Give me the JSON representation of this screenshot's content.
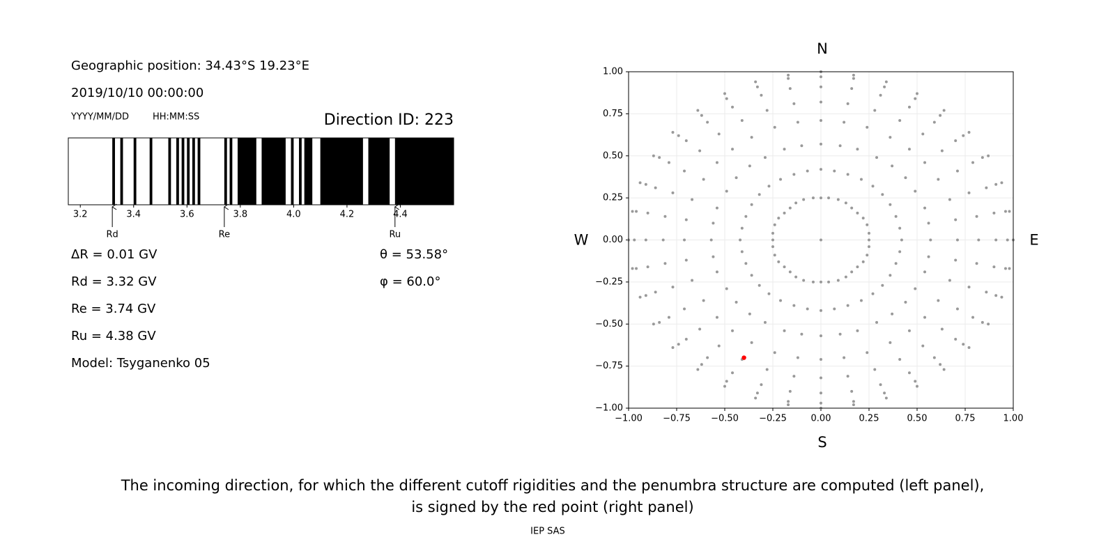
{
  "geographic_position": "Geographic position: 34.43°S 19.23°E",
  "datetime": "2019/10/10 00:00:00",
  "date_format": "YYYY/MM/DD",
  "time_format": "HH:MM:SS",
  "direction_id": "Direction ID: 223",
  "parameters": [
    "ΔR = 0.01 GV",
    "Rd = 3.32 GV",
    "Re = 3.74 GV",
    "Ru = 4.38 GV",
    "Model: Tsyganenko 05"
  ],
  "angles": [
    "θ = 53.58°",
    "φ = 60.0°"
  ],
  "chart_data": [
    {
      "type": "broken_barh",
      "color": "#000000",
      "intervals": [
        [
          3.32,
          3.33
        ],
        [
          3.35,
          3.36
        ],
        [
          3.4,
          3.41
        ],
        [
          3.46,
          3.47
        ],
        [
          3.53,
          3.54
        ],
        [
          3.56,
          3.57
        ],
        [
          3.58,
          3.59
        ],
        [
          3.6,
          3.61
        ],
        [
          3.62,
          3.63
        ],
        [
          3.64,
          3.65
        ],
        [
          3.74,
          3.75
        ],
        [
          3.76,
          3.77
        ],
        [
          3.79,
          3.86
        ],
        [
          3.88,
          3.97
        ],
        [
          3.99,
          4.0
        ],
        [
          4.02,
          4.03
        ],
        [
          4.04,
          4.07
        ],
        [
          4.1,
          4.26
        ],
        [
          4.28,
          4.36
        ],
        [
          4.38,
          4.6
        ]
      ],
      "xlim": [
        3.155,
        4.6
      ],
      "xticks": [
        3.2,
        3.4,
        3.6,
        3.8,
        {
          "value": 4,
          "label": "4.0"
        },
        4.2,
        4.4
      ],
      "markers": [
        {
          "label": "Rd",
          "value": 3.32
        },
        {
          "label": "Re",
          "value": 3.74
        },
        {
          "label": "Ru",
          "value": 4.38
        }
      ]
    },
    {
      "type": "scatter",
      "color": "#999999",
      "x": [
        0.25,
        0.42,
        0.57,
        0.71,
        0.82,
        0.91,
        0.97,
        1,
        0.25,
        0.41,
        0.56,
        0.7,
        0.81,
        0.9,
        0.96,
        0.98,
        0.24,
        0.39,
        0.54,
        0.67,
        0.77,
        0.86,
        0.91,
        0.94,
        0.22,
        0.36,
        0.49,
        0.61,
        0.71,
        0.79,
        0.84,
        0.87,
        0.19,
        0.32,
        0.44,
        0.54,
        0.63,
        0.7,
        0.74,
        0.77,
        0.16,
        0.27,
        0.37,
        0.46,
        0.53,
        0.59,
        0.62,
        0.64,
        0.13,
        0.21,
        0.29,
        0.36,
        0.41,
        0.46,
        0.49,
        0.5,
        0.09,
        0.14,
        0.19,
        0.24,
        0.28,
        0.31,
        0.33,
        0.34,
        0.04,
        0.07,
        0.1,
        0.12,
        0.14,
        0.16,
        0.17,
        0.17,
        0,
        0,
        0,
        0,
        0,
        0,
        0,
        0,
        -0.04,
        -0.07,
        -0.1,
        -0.12,
        -0.14,
        -0.16,
        -0.17,
        -0.17,
        -0.09,
        -0.14,
        -0.19,
        -0.24,
        -0.28,
        -0.31,
        -0.33,
        -0.34,
        -0.13,
        -0.21,
        -0.29,
        -0.36,
        -0.41,
        -0.46,
        -0.49,
        -0.5,
        -0.16,
        -0.27,
        -0.37,
        -0.46,
        -0.53,
        -0.59,
        -0.62,
        -0.64,
        -0.19,
        -0.32,
        -0.44,
        -0.54,
        -0.63,
        -0.7,
        -0.74,
        -0.77,
        -0.22,
        -0.36,
        -0.49,
        -0.61,
        -0.71,
        -0.79,
        -0.84,
        -0.87,
        -0.24,
        -0.39,
        -0.54,
        -0.67,
        -0.77,
        -0.86,
        -0.91,
        -0.94,
        -0.25,
        -0.41,
        -0.56,
        -0.7,
        -0.81,
        -0.9,
        -0.96,
        -0.98,
        -0.25,
        -0.42,
        -0.57,
        -0.71,
        -0.82,
        -0.91,
        -0.97,
        -1,
        -0.25,
        -0.41,
        -0.56,
        -0.7,
        -0.81,
        -0.9,
        -0.96,
        -0.98,
        -0.24,
        -0.39,
        -0.54,
        -0.67,
        -0.77,
        -0.86,
        -0.91,
        -0.94,
        -0.22,
        -0.36,
        -0.49,
        -0.61,
        -0.71,
        -0.79,
        -0.84,
        -0.87,
        -0.19,
        -0.32,
        -0.44,
        -0.54,
        -0.63,
        -0.7,
        -0.74,
        -0.77,
        -0.16,
        -0.27,
        -0.37,
        -0.46,
        -0.53,
        -0.59,
        -0.62,
        -0.64,
        -0.13,
        -0.21,
        -0.29,
        -0.36,
        -0.41,
        -0.46,
        -0.49,
        -0.5,
        -0.09,
        -0.14,
        -0.19,
        -0.24,
        -0.28,
        -0.31,
        -0.33,
        -0.34,
        -0.04,
        -0.07,
        -0.1,
        -0.12,
        -0.14,
        -0.16,
        -0.17,
        -0.17,
        0,
        0,
        0,
        0,
        0,
        0,
        0,
        0,
        0.04,
        0.07,
        0.1,
        0.12,
        0.14,
        0.16,
        0.17,
        0.17,
        0.09,
        0.14,
        0.19,
        0.24,
        0.28,
        0.31,
        0.33,
        0.34,
        0.13,
        0.21,
        0.29,
        0.36,
        0.41,
        0.46,
        0.49,
        0.5,
        0.16,
        0.27,
        0.37,
        0.46,
        0.53,
        0.59,
        0.62,
        0.64,
        0.19,
        0.32,
        0.44,
        0.54,
        0.63,
        0.7,
        0.74,
        0.77,
        0.22,
        0.36,
        0.49,
        0.61,
        0.71,
        0.79,
        0.84,
        0.87,
        0.24,
        0.39,
        0.54,
        0.67,
        0.77,
        0.86,
        0.91,
        0.94,
        0.25,
        0.41,
        0.56,
        0.7,
        0.81,
        0.9,
        0.96,
        0.98,
        0
      ],
      "values": [
        0,
        0,
        0,
        0,
        0,
        0,
        0,
        0,
        0.04,
        0.07,
        0.1,
        0.12,
        0.14,
        0.16,
        0.17,
        0.17,
        0.09,
        0.14,
        0.19,
        0.24,
        0.28,
        0.31,
        0.33,
        0.34,
        0.13,
        0.21,
        0.29,
        0.36,
        0.41,
        0.46,
        0.49,
        0.5,
        0.16,
        0.27,
        0.37,
        0.46,
        0.53,
        0.59,
        0.62,
        0.64,
        0.19,
        0.32,
        0.44,
        0.54,
        0.63,
        0.7,
        0.74,
        0.77,
        0.22,
        0.36,
        0.49,
        0.61,
        0.71,
        0.79,
        0.84,
        0.87,
        0.24,
        0.39,
        0.54,
        0.67,
        0.77,
        0.86,
        0.91,
        0.94,
        0.25,
        0.41,
        0.56,
        0.7,
        0.81,
        0.9,
        0.96,
        0.98,
        0.25,
        0.42,
        0.57,
        0.71,
        0.82,
        0.91,
        0.97,
        1,
        0.25,
        0.41,
        0.56,
        0.7,
        0.81,
        0.9,
        0.96,
        0.98,
        0.24,
        0.39,
        0.54,
        0.67,
        0.77,
        0.86,
        0.91,
        0.94,
        0.22,
        0.36,
        0.49,
        0.61,
        0.71,
        0.79,
        0.84,
        0.87,
        0.19,
        0.32,
        0.44,
        0.54,
        0.63,
        0.7,
        0.74,
        0.77,
        0.16,
        0.27,
        0.37,
        0.46,
        0.53,
        0.59,
        0.62,
        0.64,
        0.13,
        0.21,
        0.29,
        0.36,
        0.41,
        0.46,
        0.49,
        0.5,
        0.09,
        0.14,
        0.19,
        0.24,
        0.28,
        0.31,
        0.33,
        0.34,
        0.04,
        0.07,
        0.1,
        0.12,
        0.14,
        0.16,
        0.17,
        0.17,
        0,
        0,
        0,
        0,
        0,
        0,
        0,
        0,
        -0.04,
        -0.07,
        -0.1,
        -0.12,
        -0.14,
        -0.16,
        -0.17,
        -0.17,
        -0.09,
        -0.14,
        -0.19,
        -0.24,
        -0.28,
        -0.31,
        -0.33,
        -0.34,
        -0.13,
        -0.21,
        -0.29,
        -0.36,
        -0.41,
        -0.46,
        -0.49,
        -0.5,
        -0.16,
        -0.27,
        -0.37,
        -0.46,
        -0.53,
        -0.59,
        -0.62,
        -0.64,
        -0.19,
        -0.32,
        -0.44,
        -0.54,
        -0.63,
        -0.7,
        -0.74,
        -0.77,
        -0.22,
        -0.36,
        -0.49,
        -0.61,
        -0.71,
        -0.79,
        -0.84,
        -0.87,
        -0.24,
        -0.39,
        -0.54,
        -0.67,
        -0.77,
        -0.86,
        -0.91,
        -0.94,
        -0.25,
        -0.41,
        -0.56,
        -0.7,
        -0.81,
        -0.9,
        -0.96,
        -0.98,
        -0.25,
        -0.42,
        -0.57,
        -0.71,
        -0.82,
        -0.91,
        -0.97,
        -1,
        -0.25,
        -0.41,
        -0.56,
        -0.7,
        -0.81,
        -0.9,
        -0.96,
        -0.98,
        -0.24,
        -0.39,
        -0.54,
        -0.67,
        -0.77,
        -0.86,
        -0.91,
        -0.94,
        -0.22,
        -0.36,
        -0.49,
        -0.61,
        -0.71,
        -0.79,
        -0.84,
        -0.87,
        -0.19,
        -0.32,
        -0.44,
        -0.54,
        -0.63,
        -0.7,
        -0.74,
        -0.77,
        -0.16,
        -0.27,
        -0.37,
        -0.46,
        -0.53,
        -0.59,
        -0.62,
        -0.64,
        -0.13,
        -0.21,
        -0.29,
        -0.36,
        -0.41,
        -0.46,
        -0.49,
        -0.5,
        -0.09,
        -0.14,
        -0.19,
        -0.24,
        -0.28,
        -0.31,
        -0.33,
        -0.34,
        -0.04,
        -0.07,
        -0.1,
        -0.12,
        -0.14,
        -0.16,
        -0.17,
        -0.17,
        0
      ],
      "highlight": {
        "x": -0.4,
        "y": -0.7,
        "color": "#ff0000"
      },
      "xlim": [
        -1,
        1
      ],
      "ylim": [
        -1,
        1
      ],
      "xticks": [
        {
          "value": -1,
          "label": "−1.00"
        },
        {
          "value": -0.75,
          "label": "−0.75"
        },
        {
          "value": -0.5,
          "label": "−0.50"
        },
        {
          "value": -0.25,
          "label": "−0.25"
        },
        {
          "value": 0,
          "label": "0.00"
        },
        {
          "value": 0.25,
          "label": "0.25"
        },
        {
          "value": 0.5,
          "label": "0.50"
        },
        {
          "value": 0.75,
          "label": "0.75"
        },
        {
          "value": 1,
          "label": "1.00"
        }
      ],
      "yticks": [
        {
          "value": -1,
          "label": "−1.00"
        },
        {
          "value": -0.75,
          "label": "−0.75"
        },
        {
          "value": -0.5,
          "label": "−0.50"
        },
        {
          "value": -0.25,
          "label": "−0.25"
        },
        {
          "value": 0,
          "label": "0.00"
        },
        {
          "value": 0.25,
          "label": "0.25"
        },
        {
          "value": 0.5,
          "label": "0.50"
        },
        {
          "value": 0.75,
          "label": "0.75"
        },
        {
          "value": 1,
          "label": "1.00"
        }
      ],
      "grid": true,
      "direction_labels": {
        "top": "N",
        "bottom": "S",
        "left": "W",
        "right": "E"
      }
    }
  ],
  "caption": [
    "The incoming direction, for which the different cutoff rigidities and the penumbra structure are computed (left panel),",
    "is signed by the red point (right panel)"
  ],
  "footer": "IEP SAS"
}
